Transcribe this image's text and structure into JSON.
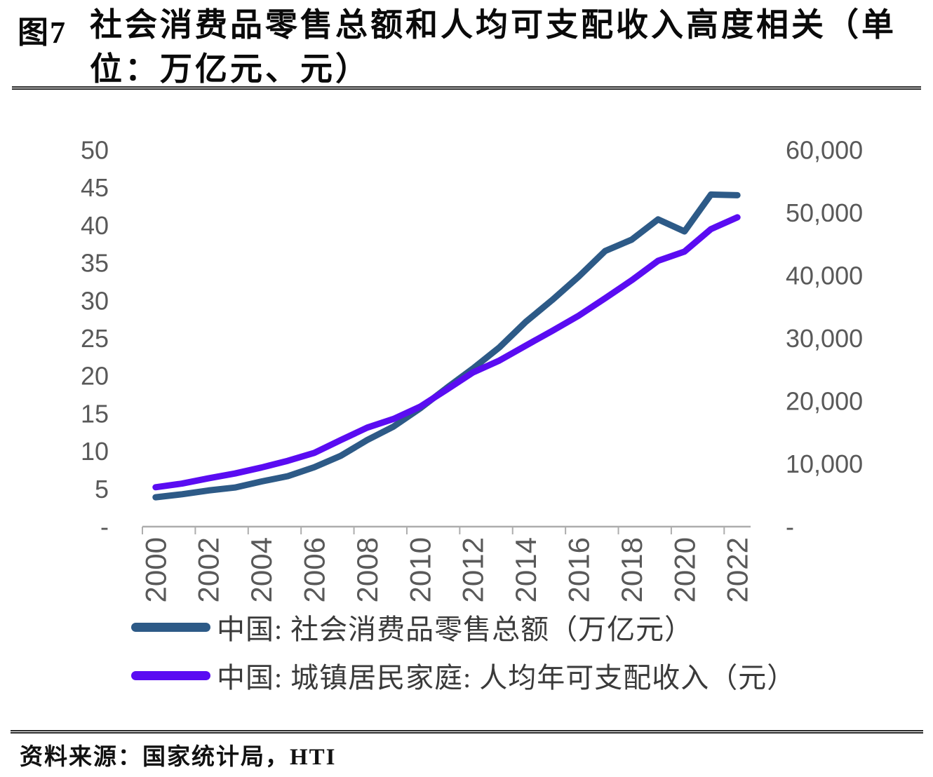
{
  "title": {
    "figure_label": "图7",
    "line1": "社会消费品零售总额和人均可支配收入高度相关（单",
    "line2": "位：万亿元、元）"
  },
  "source": {
    "text": "资料来源：国家统计局，HTI"
  },
  "chart_data": {
    "type": "line",
    "title": "社会消费品零售总额和人均可支配收入高度相关（单位：万亿元、元）",
    "x": [
      2000,
      2001,
      2002,
      2003,
      2004,
      2005,
      2006,
      2007,
      2008,
      2009,
      2010,
      2011,
      2012,
      2013,
      2014,
      2015,
      2016,
      2017,
      2018,
      2019,
      2020,
      2021,
      2022
    ],
    "x_tick_labels": [
      "2000",
      "2002",
      "2004",
      "2006",
      "2008",
      "2010",
      "2012",
      "2014",
      "2016",
      "2018",
      "2020",
      "2022"
    ],
    "left_axis": {
      "max": 50,
      "min": 0,
      "ticks": [
        {
          "label": "50",
          "value": 50
        },
        {
          "label": "45",
          "value": 45
        },
        {
          "label": "40",
          "value": 40
        },
        {
          "label": "35",
          "value": 35
        },
        {
          "label": "30",
          "value": 30
        },
        {
          "label": "25",
          "value": 25
        },
        {
          "label": "20",
          "value": 20
        },
        {
          "label": "15",
          "value": 15
        },
        {
          "label": "10",
          "value": 10
        },
        {
          "label": "5",
          "value": 5
        },
        {
          "label": "-",
          "value": 0
        }
      ]
    },
    "right_axis": {
      "max": 60000,
      "min": 0,
      "ticks": [
        {
          "label": "60,000",
          "value": 60000
        },
        {
          "label": "50,000",
          "value": 50000
        },
        {
          "label": "40,000",
          "value": 40000
        },
        {
          "label": "30,000",
          "value": 30000
        },
        {
          "label": "20,000",
          "value": 20000
        },
        {
          "label": "10,000",
          "value": 10000
        },
        {
          "label": "-",
          "value": 0
        }
      ]
    },
    "series": [
      {
        "name": "中国: 社会消费品零售总额（万亿元）",
        "axis": "left",
        "color": "#2D5A87",
        "values": [
          3.9,
          4.3,
          4.8,
          5.2,
          6.0,
          6.7,
          7.9,
          9.4,
          11.5,
          13.3,
          15.7,
          18.4,
          21.0,
          23.8,
          27.2,
          30.1,
          33.2,
          36.6,
          38.1,
          40.8,
          39.2,
          44.1,
          44.0
        ]
      },
      {
        "name": "中国: 城镇居民家庭: 人均年可支配收入（元）",
        "axis": "right",
        "color": "#5A0CF2",
        "values": [
          6280,
          6860,
          7703,
          8472,
          9422,
          10493,
          11759,
          13786,
          15781,
          17175,
          19109,
          21810,
          24565,
          26467,
          28844,
          31195,
          33616,
          36396,
          39251,
          42359,
          43834,
          47412,
          49283
        ]
      }
    ],
    "legend_position": "bottom",
    "grid": false,
    "axis_line_color": "#ADADAD",
    "tick_label_color": "#595959"
  }
}
